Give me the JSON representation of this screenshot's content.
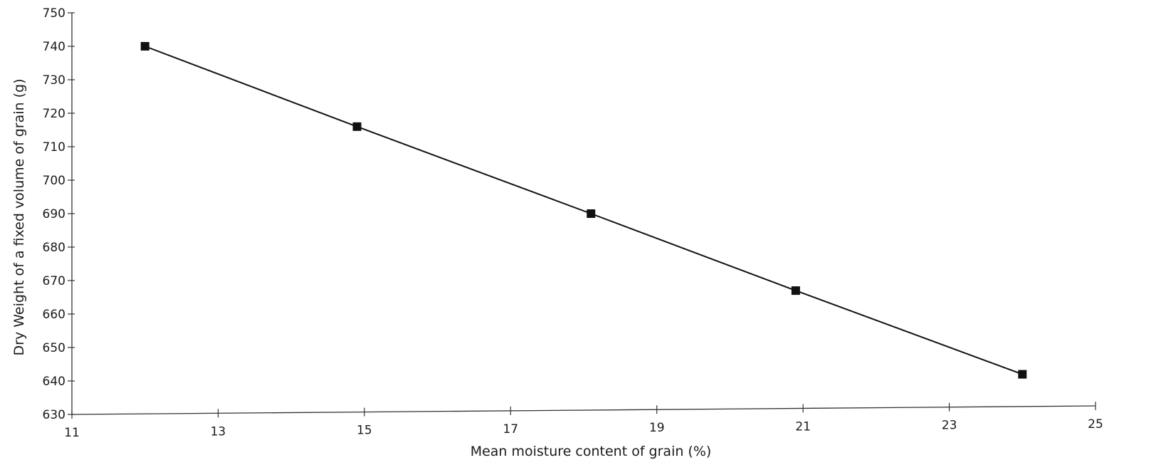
{
  "chart_data": {
    "type": "line",
    "title": "",
    "xlabel": "Mean moisture content of grain (%)",
    "ylabel": "Dry Weight of a fixed volume of grain (g)",
    "xlim": [
      11,
      25
    ],
    "ylim": [
      630,
      750
    ],
    "x_ticks": [
      11,
      13,
      15,
      17,
      19,
      21,
      23,
      25
    ],
    "y_ticks": [
      630,
      640,
      650,
      660,
      670,
      680,
      690,
      700,
      710,
      720,
      730,
      740,
      750
    ],
    "grid": false,
    "legend": "none",
    "series": [
      {
        "x": [
          12.0,
          14.9,
          18.1,
          20.9,
          24.0
        ],
        "y": [
          740,
          716,
          690,
          667,
          642
        ],
        "color": "#111111",
        "marker": "square"
      }
    ]
  }
}
